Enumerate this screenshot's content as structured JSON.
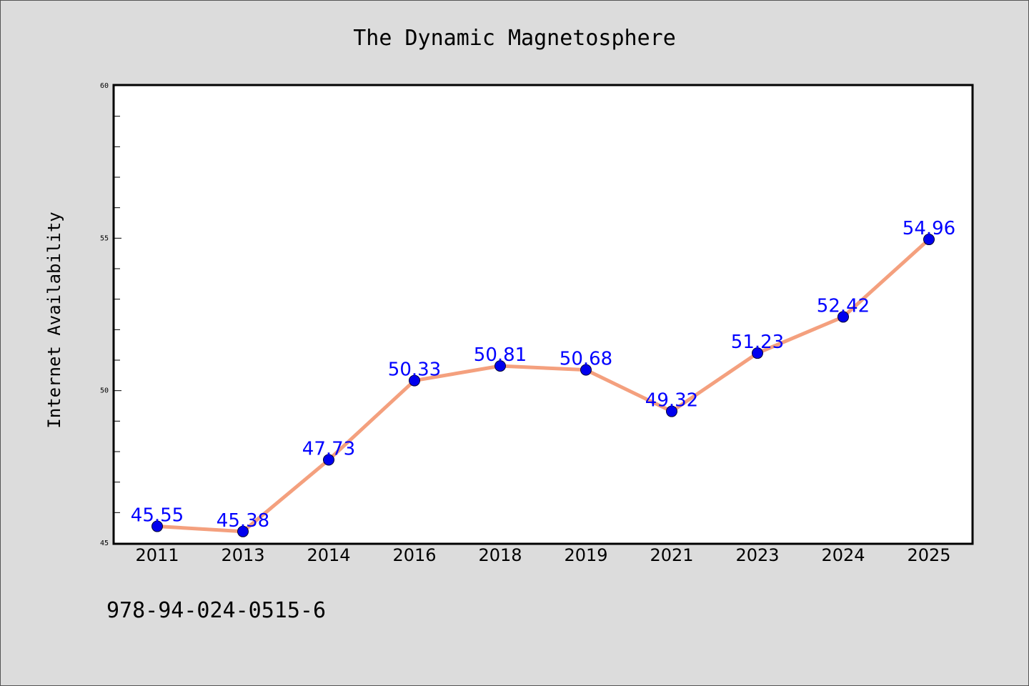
{
  "footer": {
    "isbn": "978-94-024-0515-6"
  },
  "colors": {
    "line": "#f4a07e",
    "marker": "#0000ee",
    "data_label": "#0000ff",
    "background": "#dcdcdc",
    "plot_background": "#ffffff"
  },
  "chart_data": {
    "type": "line",
    "title": "The Dynamic Magnetosphere",
    "xlabel": "",
    "ylabel": "Internet Availability",
    "categories": [
      "2011",
      "2013",
      "2014",
      "2016",
      "2018",
      "2019",
      "2021",
      "2023",
      "2024",
      "2025"
    ],
    "series": [
      {
        "values": [
          45.55,
          45.38,
          47.73,
          50.33,
          50.81,
          50.68,
          49.32,
          51.23,
          52.42,
          54.96
        ],
        "labels": [
          "45.55",
          "45.38",
          "47.73",
          "50.33",
          "50.81",
          "50.68",
          "49.32",
          "51.23",
          "52.42",
          "54.96"
        ]
      }
    ],
    "ylim": [
      45,
      60
    ],
    "yticks": [
      "45",
      "50",
      "55",
      "60"
    ],
    "y_minor_step": 1,
    "grid": false,
    "legend": "none"
  }
}
